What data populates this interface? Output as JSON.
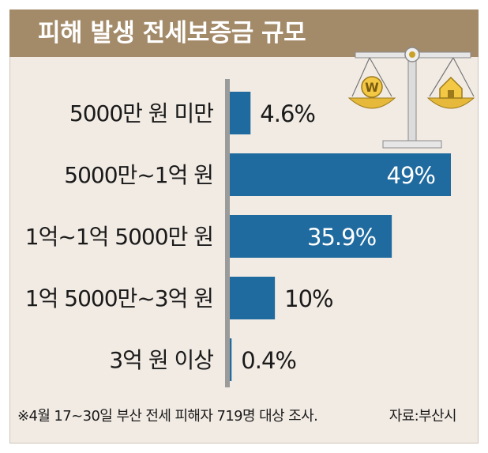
{
  "header": {
    "title": "피해 발생 전세보증금 규모"
  },
  "chart_data": {
    "type": "bar",
    "orientation": "horizontal",
    "title": "피해 발생 전세보증금 규모",
    "categories": [
      "5000만 원 미만",
      "5000만~1억 원",
      "1억~1억 5000만 원",
      "1억 5000만~3억 원",
      "3억 원 이상"
    ],
    "values": [
      4.6,
      49,
      35.9,
      10,
      0.4
    ],
    "value_labels": [
      "4.6%",
      "49%",
      "35.9%",
      "10%",
      "0.4%"
    ],
    "unit": "%",
    "xlim": [
      0,
      49
    ],
    "grid": false,
    "bar_color": "#1f6a9e"
  },
  "footer": {
    "note": "※4월 17~30일 부산 전세 피해자 719명 대상 조사.",
    "source": "자료:부산시"
  },
  "icons": {
    "scale": "balance-scale-icon",
    "left_pan": "won-coin-icon",
    "right_pan": "house-icon"
  }
}
